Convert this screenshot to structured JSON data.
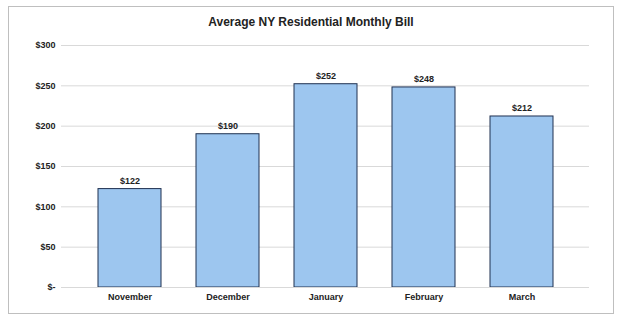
{
  "chart_data": {
    "type": "bar",
    "title": "Average NY Residential Monthly Bill",
    "categories": [
      "November",
      "December",
      "January",
      "February",
      "March"
    ],
    "values": [
      122,
      190,
      252,
      248,
      212
    ],
    "value_labels": [
      "$122",
      "$190",
      "$252",
      "$248",
      "$212"
    ],
    "data_labels": true,
    "color": "#9dc6ef",
    "ylim": [
      0,
      300
    ],
    "yticks": [
      {
        "value": 0,
        "label": "$-"
      },
      {
        "value": 50,
        "label": "$50"
      },
      {
        "value": 100,
        "label": "$100"
      },
      {
        "value": 150,
        "label": "$150"
      },
      {
        "value": 200,
        "label": "$200"
      },
      {
        "value": 250,
        "label": "$250"
      },
      {
        "value": 300,
        "label": "$300"
      }
    ],
    "grid": true
  }
}
